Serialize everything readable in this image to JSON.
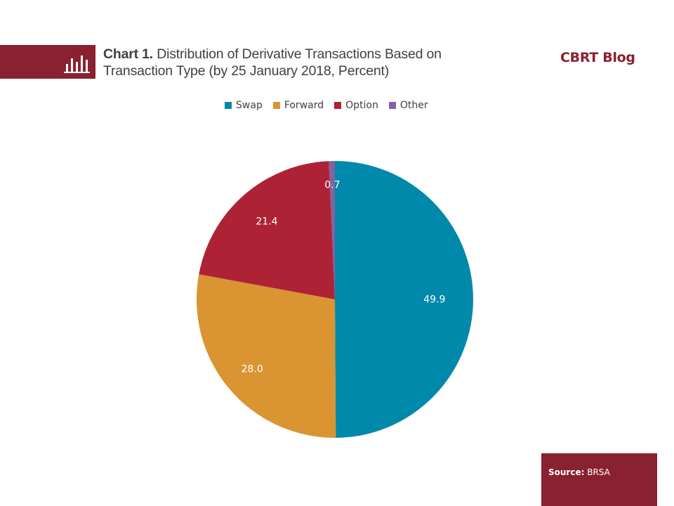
{
  "header": {
    "icon": "bar-chart-icon",
    "title_bold": "Chart 1.",
    "title_rest": " Distribution  of Derivative Transactions  Based on Transaction  Type  (by 25 January 2018, Percent)",
    "brand": "CBRT Blog"
  },
  "colors": {
    "brand": "#8a2130",
    "swap": "#0089ab",
    "forward": "#da9432",
    "option": "#ad2335",
    "other": "#8064a2"
  },
  "source": {
    "label": "Source:",
    "value": " BRSA"
  },
  "chart_data": {
    "type": "pie",
    "title": "Chart 1. Distribution of Derivative Transactions Based on Transaction Type (by 25 January 2018, Percent)",
    "legend_position": "top",
    "categories": [
      "Swap",
      "Forward",
      "Option",
      "Other"
    ],
    "values": [
      49.9,
      28.0,
      21.4,
      0.7
    ],
    "labels": [
      "49.9",
      "28.0",
      "21.4",
      "0.7"
    ],
    "start_angle_deg": 0,
    "direction": "clockwise"
  }
}
